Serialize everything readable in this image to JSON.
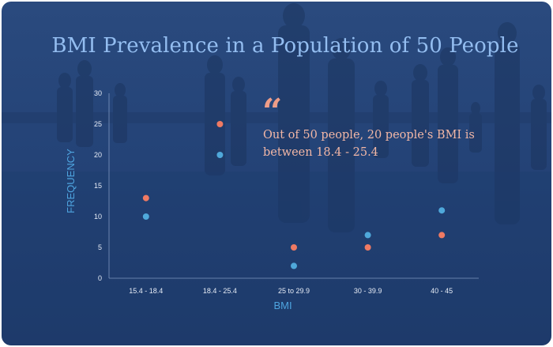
{
  "title": "BMI Prevalence in a Population of 50 People",
  "callout": {
    "quote_glyph": "“",
    "text": "Out of 50 people, 20 people's BMI is between 18.4 - 25.4"
  },
  "colors": {
    "background": "#244377",
    "title": "#93bdf0",
    "callout_text": "#f2b7a6",
    "axis_title": "#4ea4df",
    "series_a": "#4fa8da",
    "series_b": "#ef7a63"
  },
  "chart_data": {
    "type": "scatter",
    "title": "BMI Prevalence in a Population of 50 People",
    "xlabel": "BMI",
    "ylabel": "FREQUENCY",
    "categories": [
      "15.4 - 18.4",
      "18.4 - 25.4",
      "25 to 29.9",
      "30 - 39.9",
      "40 - 45"
    ],
    "ylim": [
      0,
      30
    ],
    "yticks": [
      0,
      5,
      10,
      15,
      20,
      25,
      30
    ],
    "grid": false,
    "series": [
      {
        "color": "#4fa8da",
        "values": [
          10,
          20,
          2,
          7,
          11
        ]
      },
      {
        "color": "#ef7a63",
        "values": [
          13,
          25,
          5,
          5,
          7
        ]
      }
    ]
  }
}
